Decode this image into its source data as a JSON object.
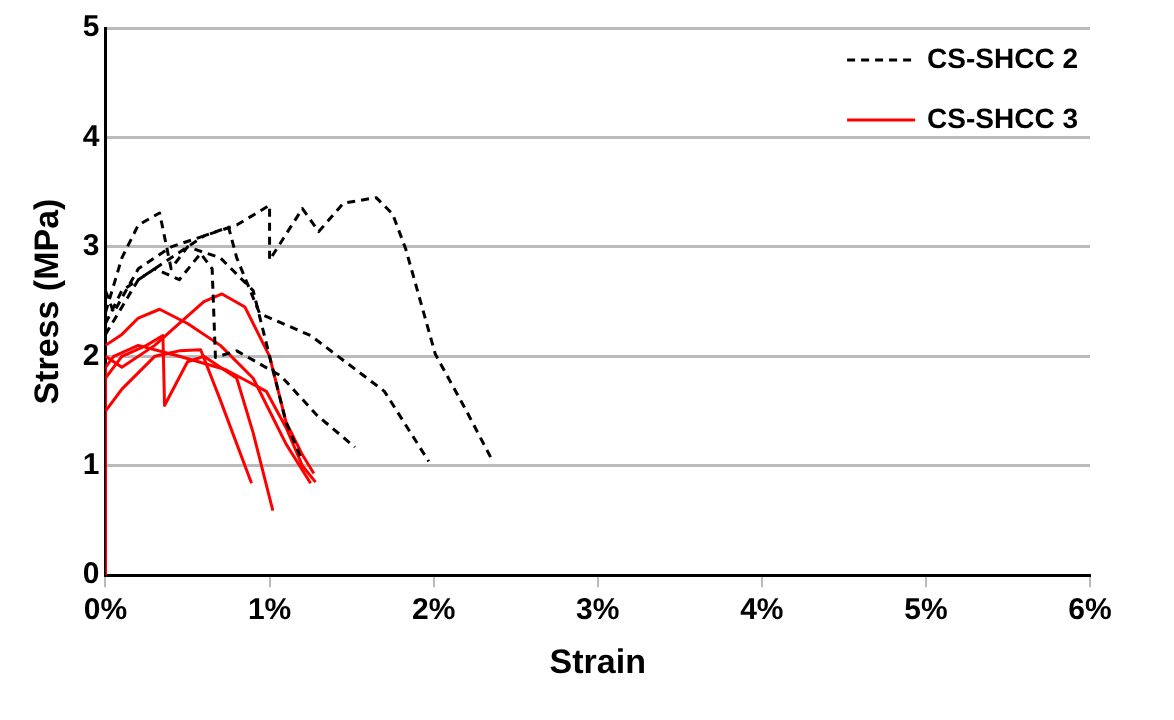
{
  "chart_data": {
    "type": "line",
    "xlabel": "Strain",
    "ylabel": "Stress (MPa)",
    "xlim": [
      0,
      6
    ],
    "xticks": [
      {
        "value": 0,
        "label": "0%"
      },
      {
        "value": 1,
        "label": "1%"
      },
      {
        "value": 2,
        "label": "2%"
      },
      {
        "value": 3,
        "label": "3%"
      },
      {
        "value": 4,
        "label": "4%"
      },
      {
        "value": 5,
        "label": "5%"
      },
      {
        "value": 6,
        "label": "6%"
      }
    ],
    "ylim": [
      0,
      5
    ],
    "yticks": [
      0,
      1,
      2,
      3,
      4,
      5
    ],
    "grid": "y",
    "legend": "top right",
    "marker": "none",
    "series": [
      {
        "name": "CS-SHCC 2",
        "color": "#000000",
        "line_style": "dashed",
        "x": [
          0,
          0.05,
          0.2,
          0.4,
          0.6,
          0.8,
          1.0,
          1.0,
          1.2,
          1.3,
          1.45,
          1.65,
          1.75,
          1.83,
          2.01,
          2.2,
          2.35
        ],
        "values": [
          2.6,
          2.4,
          2.8,
          3.0,
          3.1,
          3.2,
          3.38,
          2.88,
          3.35,
          3.14,
          3.4,
          3.45,
          3.3,
          2.98,
          2.02,
          1.5,
          1.07
        ]
      },
      {
        "color": "#000000",
        "line_style": "dashed",
        "x": [
          0,
          0.2,
          0.4,
          0.6,
          0.75,
          0.8,
          0.94,
          1.25,
          1.7,
          1.97
        ],
        "values": [
          2.2,
          2.7,
          2.9,
          3.1,
          3.18,
          2.9,
          2.39,
          2.19,
          1.68,
          1.04
        ]
      },
      {
        "color": "#000000",
        "line_style": "dashed",
        "x": [
          0,
          0.1,
          0.3,
          0.45,
          0.58,
          0.65,
          0.67,
          0.8,
          1.07,
          1.29,
          1.52
        ],
        "values": [
          2.3,
          2.6,
          2.8,
          2.7,
          2.94,
          2.8,
          1.99,
          2.05,
          1.82,
          1.46,
          1.17
        ]
      },
      {
        "color": "#000000",
        "line_style": "dashed",
        "x": [
          0,
          0.1,
          0.2,
          0.33,
          0.4,
          0.5,
          0.7,
          0.9,
          1.0,
          1.1,
          1.2
        ],
        "values": [
          2.4,
          2.9,
          3.2,
          3.31,
          2.8,
          3.0,
          2.9,
          2.6,
          2.0,
          1.4,
          1.04
        ]
      },
      {
        "name": "CS-SHCC 3",
        "color": "#ff0000",
        "line_style": "solid",
        "x": [
          0,
          0.1,
          0.3,
          0.45,
          0.6,
          0.71,
          0.85,
          1.0,
          1.1,
          1.2,
          1.27
        ],
        "values": [
          2.0,
          1.9,
          2.1,
          2.3,
          2.5,
          2.57,
          2.45,
          2.0,
          1.4,
          1.1,
          0.93
        ]
      },
      {
        "color": "#ff0000",
        "line_style": "solid",
        "x": [
          0,
          0.1,
          0.2,
          0.33,
          0.5,
          0.7,
          0.9,
          1.0,
          1.1,
          1.25
        ],
        "values": [
          2.1,
          2.2,
          2.35,
          2.43,
          2.3,
          2.1,
          1.8,
          1.5,
          1.2,
          0.84
        ]
      },
      {
        "color": "#ff0000",
        "line_style": "solid",
        "x": [
          0,
          0.1,
          0.25,
          0.35,
          0.36,
          0.5,
          0.6,
          0.8,
          0.9,
          1.02
        ],
        "values": [
          1.8,
          2.0,
          2.1,
          2.19,
          1.55,
          1.95,
          2.0,
          1.8,
          1.3,
          0.59
        ]
      },
      {
        "color": "#ff0000",
        "line_style": "solid",
        "x": [
          0,
          0.1,
          0.3,
          0.45,
          0.58,
          0.7,
          0.8,
          0.89
        ],
        "values": [
          1.5,
          1.7,
          2.0,
          2.05,
          2.06,
          1.6,
          1.2,
          0.84
        ]
      },
      {
        "color": "#ff0000",
        "line_style": "solid",
        "x": [
          0,
          0,
          0.05,
          0.2,
          0.45,
          0.73,
          0.98,
          1.1,
          1.2,
          1.28
        ],
        "values": [
          0,
          1.9,
          2.0,
          2.1,
          2.0,
          1.88,
          1.68,
          1.35,
          1.0,
          0.85
        ]
      }
    ]
  }
}
